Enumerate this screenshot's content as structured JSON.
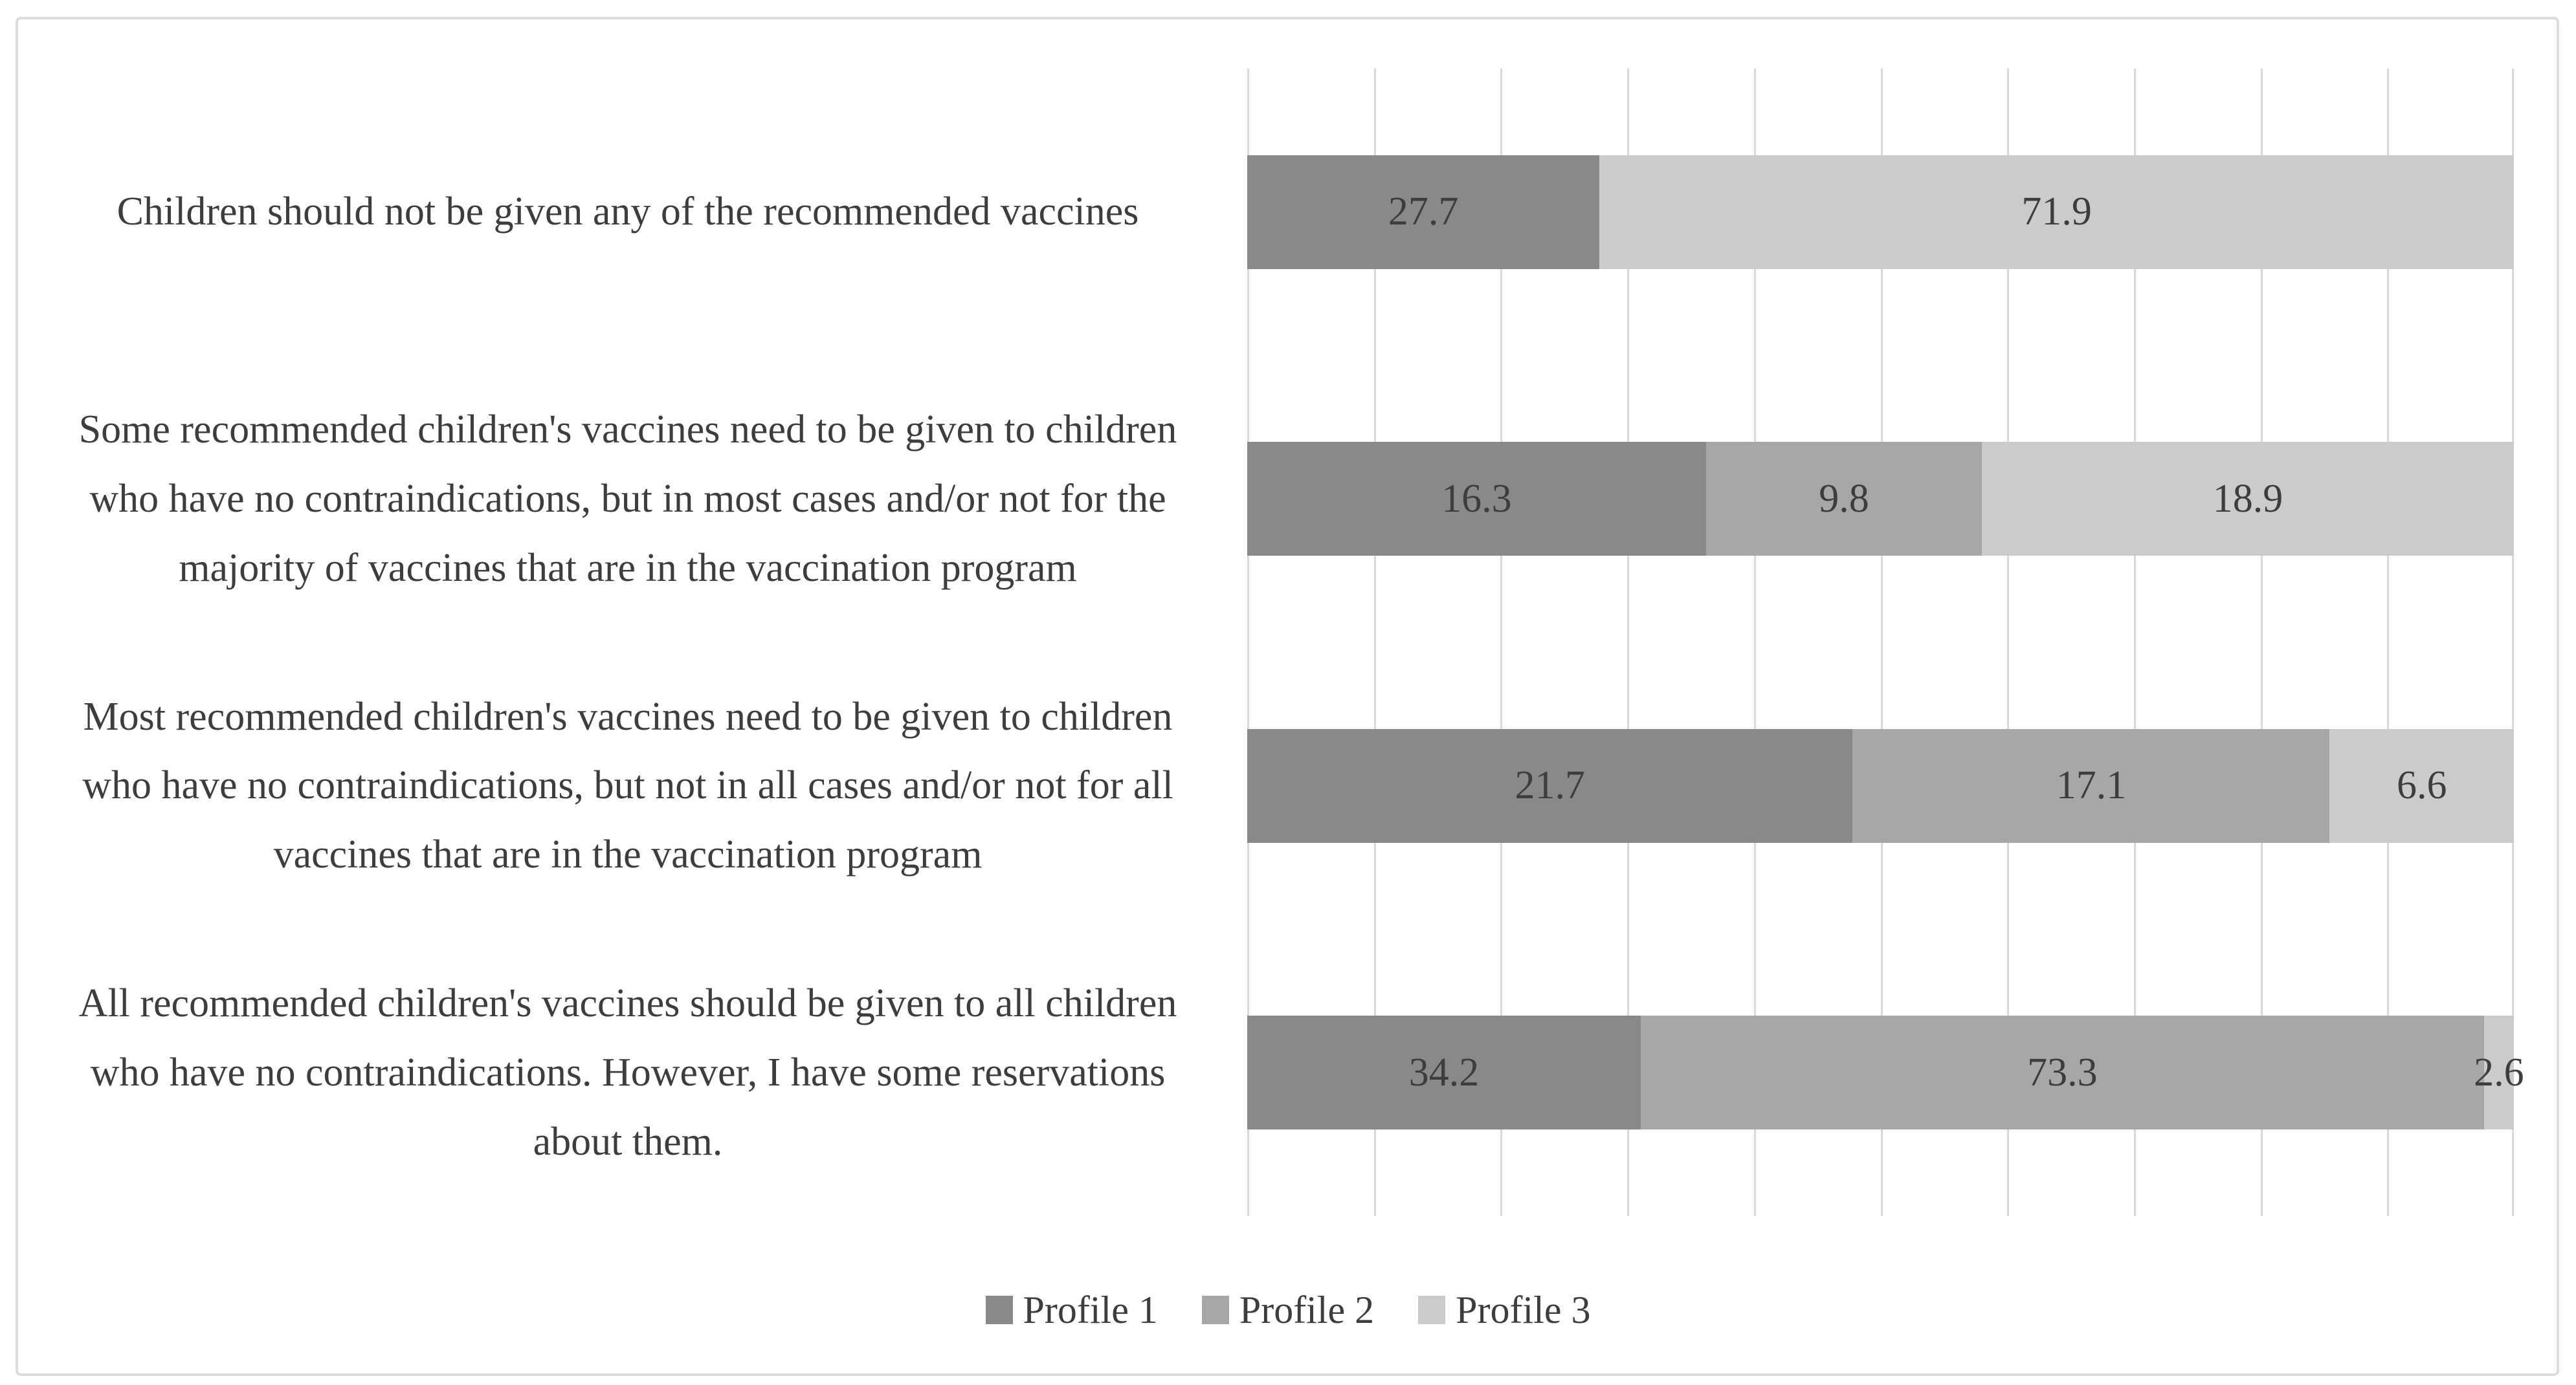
{
  "colors": {
    "p1": "#898989",
    "p2": "#a7a7a7",
    "p3": "#cbcbcb",
    "grid": "#d9d9d9",
    "text": "#3d3d3d",
    "frame": "#dcdcdc",
    "bg": "#ffffff"
  },
  "chart_data": {
    "type": "bar",
    "orientation": "horizontal",
    "stacked": true,
    "normalized_to_100_percent": true,
    "title": "",
    "xlabel": "",
    "ylabel": "",
    "grid": "vertical",
    "gridlines": {
      "vertical_count": 11,
      "color": "#d9d9d9"
    },
    "value_labels": "inside-center",
    "categories": [
      "Children should not be given any of the recommended vaccines",
      "Some recommended children's vaccines need to be given to children\nwho have no contraindications, but in most cases and/or not for the\nmajority of vaccines that are in the vaccination program",
      "Most recommended children's vaccines need to be given to children\nwho have no contraindications, but not in all cases and/or not for all\nvaccines that are in the vaccination program",
      "All recommended children's vaccines should be given to all children\nwho have no contraindications. However, I have some reservations\nabout them."
    ],
    "series": [
      {
        "name": "Profile 1",
        "color": "#898989",
        "values": [
          27.7,
          16.3,
          21.7,
          34.2
        ]
      },
      {
        "name": "Profile 2",
        "color": "#a7a7a7",
        "values": [
          null,
          9.8,
          17.1,
          73.3
        ]
      },
      {
        "name": "Profile 3",
        "color": "#cbcbcb",
        "values": [
          71.9,
          18.9,
          6.6,
          2.6
        ]
      }
    ],
    "legend": {
      "position": "bottom",
      "labels": [
        "Profile 1",
        "Profile 2",
        "Profile 3"
      ]
    }
  }
}
